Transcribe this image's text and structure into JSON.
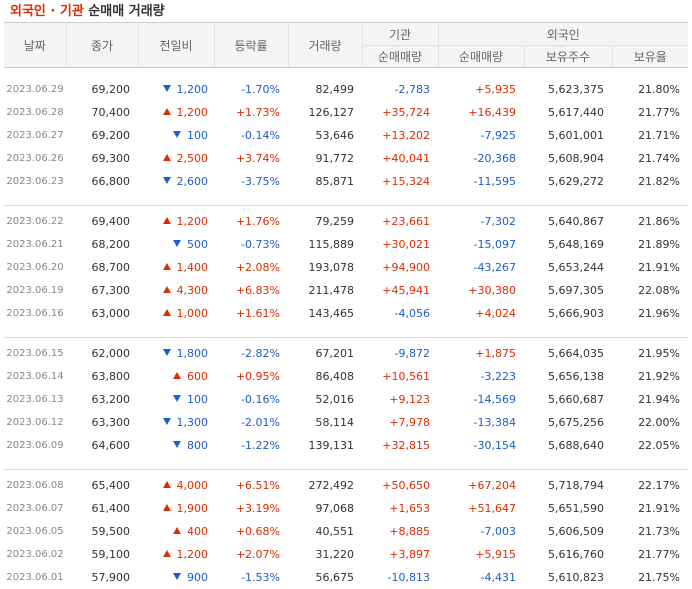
{
  "title": {
    "part1": "외국인 · 기관",
    "part2": "순매매 거래량"
  },
  "headers": {
    "date": "날짜",
    "close": "종가",
    "change": "전일비",
    "rate": "등락률",
    "volume": "거래량",
    "institution": "기관",
    "foreign": "외국인",
    "inst_net": "순매매량",
    "for_net": "순매매량",
    "for_hold": "보유주수",
    "for_ratio": "보유율"
  },
  "colors": {
    "up": "#dd2c00",
    "down": "#1a5ecc"
  },
  "groups": [
    [
      {
        "date": "2023.06.29",
        "close": "69,200",
        "dir": "down",
        "change": "1,200",
        "rate": "-1.70%",
        "volume": "82,499",
        "inst": "-2,783",
        "foreign": "+5,935",
        "hold": "5,623,375",
        "ratio": "21.80%"
      },
      {
        "date": "2023.06.28",
        "close": "70,400",
        "dir": "up",
        "change": "1,200",
        "rate": "+1.73%",
        "volume": "126,127",
        "inst": "+35,724",
        "foreign": "+16,439",
        "hold": "5,617,440",
        "ratio": "21.77%"
      },
      {
        "date": "2023.06.27",
        "close": "69,200",
        "dir": "down",
        "change": "100",
        "rate": "-0.14%",
        "volume": "53,646",
        "inst": "+13,202",
        "foreign": "-7,925",
        "hold": "5,601,001",
        "ratio": "21.71%"
      },
      {
        "date": "2023.06.26",
        "close": "69,300",
        "dir": "up",
        "change": "2,500",
        "rate": "+3.74%",
        "volume": "91,772",
        "inst": "+40,041",
        "foreign": "-20,368",
        "hold": "5,608,904",
        "ratio": "21.74%"
      },
      {
        "date": "2023.06.23",
        "close": "66,800",
        "dir": "down",
        "change": "2,600",
        "rate": "-3.75%",
        "volume": "85,871",
        "inst": "+15,324",
        "foreign": "-11,595",
        "hold": "5,629,272",
        "ratio": "21.82%"
      }
    ],
    [
      {
        "date": "2023.06.22",
        "close": "69,400",
        "dir": "up",
        "change": "1,200",
        "rate": "+1.76%",
        "volume": "79,259",
        "inst": "+23,661",
        "foreign": "-7,302",
        "hold": "5,640,867",
        "ratio": "21.86%"
      },
      {
        "date": "2023.06.21",
        "close": "68,200",
        "dir": "down",
        "change": "500",
        "rate": "-0.73%",
        "volume": "115,889",
        "inst": "+30,021",
        "foreign": "-15,097",
        "hold": "5,648,169",
        "ratio": "21.89%"
      },
      {
        "date": "2023.06.20",
        "close": "68,700",
        "dir": "up",
        "change": "1,400",
        "rate": "+2.08%",
        "volume": "193,078",
        "inst": "+94,900",
        "foreign": "-43,267",
        "hold": "5,653,244",
        "ratio": "21.91%"
      },
      {
        "date": "2023.06.19",
        "close": "67,300",
        "dir": "up",
        "change": "4,300",
        "rate": "+6.83%",
        "volume": "211,478",
        "inst": "+45,941",
        "foreign": "+30,380",
        "hold": "5,697,305",
        "ratio": "22.08%"
      },
      {
        "date": "2023.06.16",
        "close": "63,000",
        "dir": "up",
        "change": "1,000",
        "rate": "+1.61%",
        "volume": "143,465",
        "inst": "-4,056",
        "foreign": "+4,024",
        "hold": "5,666,903",
        "ratio": "21.96%"
      }
    ],
    [
      {
        "date": "2023.06.15",
        "close": "62,000",
        "dir": "down",
        "change": "1,800",
        "rate": "-2.82%",
        "volume": "67,201",
        "inst": "-9,872",
        "foreign": "+1,875",
        "hold": "5,664,035",
        "ratio": "21.95%"
      },
      {
        "date": "2023.06.14",
        "close": "63,800",
        "dir": "up",
        "change": "600",
        "rate": "+0.95%",
        "volume": "86,408",
        "inst": "+10,561",
        "foreign": "-3,223",
        "hold": "5,656,138",
        "ratio": "21.92%"
      },
      {
        "date": "2023.06.13",
        "close": "63,200",
        "dir": "down",
        "change": "100",
        "rate": "-0.16%",
        "volume": "52,016",
        "inst": "+9,123",
        "foreign": "-14,569",
        "hold": "5,660,687",
        "ratio": "21.94%"
      },
      {
        "date": "2023.06.12",
        "close": "63,300",
        "dir": "down",
        "change": "1,300",
        "rate": "-2.01%",
        "volume": "58,114",
        "inst": "+7,978",
        "foreign": "-13,384",
        "hold": "5,675,256",
        "ratio": "22.00%"
      },
      {
        "date": "2023.06.09",
        "close": "64,600",
        "dir": "down",
        "change": "800",
        "rate": "-1.22%",
        "volume": "139,131",
        "inst": "+32,815",
        "foreign": "-30,154",
        "hold": "5,688,640",
        "ratio": "22.05%"
      }
    ],
    [
      {
        "date": "2023.06.08",
        "close": "65,400",
        "dir": "up",
        "change": "4,000",
        "rate": "+6.51%",
        "volume": "272,492",
        "inst": "+50,650",
        "foreign": "+67,204",
        "hold": "5,718,794",
        "ratio": "22.17%"
      },
      {
        "date": "2023.06.07",
        "close": "61,400",
        "dir": "up",
        "change": "1,900",
        "rate": "+3.19%",
        "volume": "97,068",
        "inst": "+1,653",
        "foreign": "+51,647",
        "hold": "5,651,590",
        "ratio": "21.91%"
      },
      {
        "date": "2023.06.05",
        "close": "59,500",
        "dir": "up",
        "change": "400",
        "rate": "+0.68%",
        "volume": "40,551",
        "inst": "+8,885",
        "foreign": "-7,003",
        "hold": "5,606,509",
        "ratio": "21.73%"
      },
      {
        "date": "2023.06.02",
        "close": "59,100",
        "dir": "up",
        "change": "1,200",
        "rate": "+2.07%",
        "volume": "31,220",
        "inst": "+3,897",
        "foreign": "+5,915",
        "hold": "5,616,760",
        "ratio": "21.77%"
      },
      {
        "date": "2023.06.01",
        "close": "57,900",
        "dir": "down",
        "change": "900",
        "rate": "-1.53%",
        "volume": "56,675",
        "inst": "-10,813",
        "foreign": "-4,431",
        "hold": "5,610,823",
        "ratio": "21.75%"
      }
    ]
  ]
}
